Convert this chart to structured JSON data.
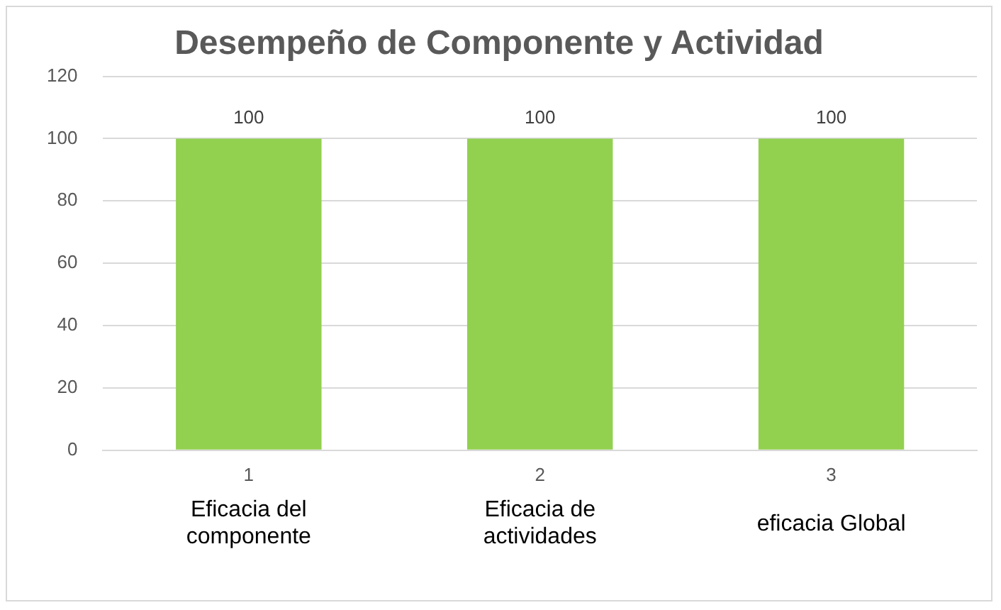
{
  "chart_data": {
    "type": "bar",
    "title": "Desempeño de Componente y Actividad",
    "categories": [
      "1",
      "2",
      "3"
    ],
    "values": [
      100,
      100,
      100
    ],
    "color": "#92d050",
    "ylim": [
      0,
      120
    ],
    "yticks": [
      0,
      20,
      40,
      60,
      80,
      100,
      120
    ],
    "grid": "y",
    "legend": false,
    "data_labels": true,
    "annotations": [
      "Eficacia del componente",
      "Eficacia de actividades",
      "eficacia Global"
    ]
  }
}
